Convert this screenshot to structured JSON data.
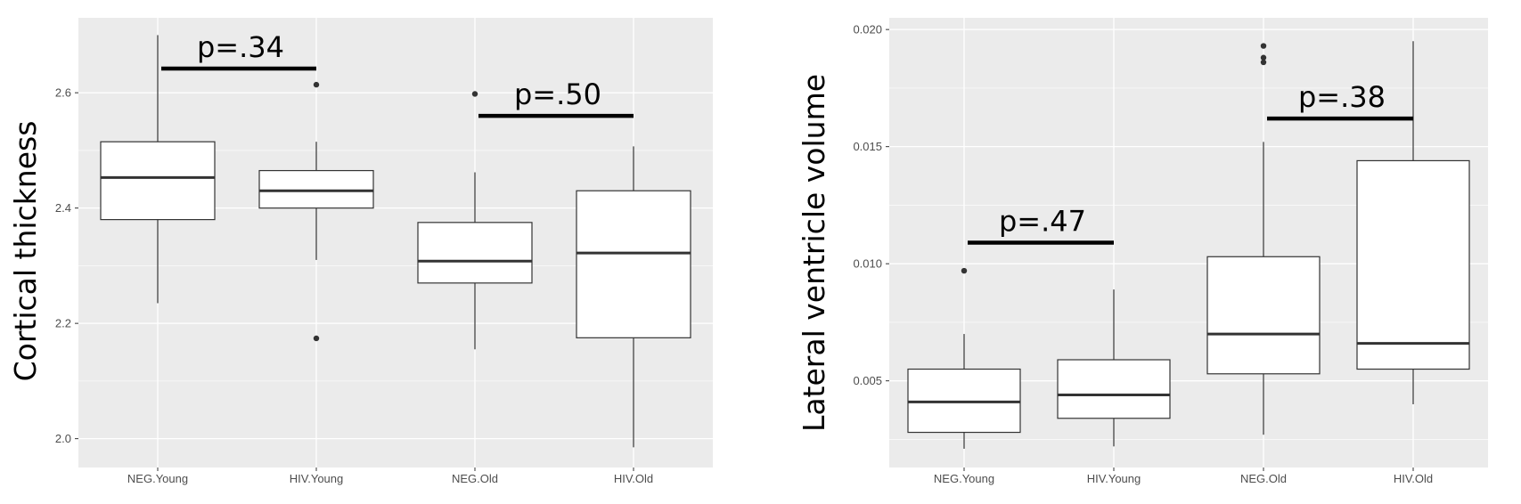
{
  "chart_data": [
    {
      "type": "box",
      "title": "",
      "xlabel": "",
      "ylabel": "Cortical thickness",
      "categories": [
        "NEG.Young",
        "HIV.Young",
        "NEG.Old",
        "HIV.Old"
      ],
      "yticks": [
        2.0,
        2.2,
        2.4,
        2.6
      ],
      "ylim": [
        1.95,
        2.73
      ],
      "grid": true,
      "boxes": [
        {
          "category": "NEG.Young",
          "whisker_low": 2.235,
          "q1": 2.38,
          "median": 2.453,
          "q3": 2.515,
          "whisker_high": 2.7,
          "outliers": []
        },
        {
          "category": "HIV.Young",
          "whisker_low": 2.31,
          "q1": 2.4,
          "median": 2.43,
          "q3": 2.465,
          "whisker_high": 2.515,
          "outliers": [
            2.614,
            2.174
          ]
        },
        {
          "category": "NEG.Old",
          "whisker_low": 2.155,
          "q1": 2.27,
          "median": 2.308,
          "q3": 2.375,
          "whisker_high": 2.462,
          "outliers": [
            2.598
          ]
        },
        {
          "category": "HIV.Old",
          "whisker_low": 1.985,
          "q1": 2.175,
          "median": 2.322,
          "q3": 2.43,
          "whisker_high": 2.507,
          "outliers": []
        }
      ],
      "annotations": [
        {
          "text": "p=.34",
          "from": "NEG.Young",
          "to": "HIV.Young",
          "y": 2.642
        },
        {
          "text": "p=.50",
          "from": "NEG.Old",
          "to": "HIV.Old",
          "y": 2.56
        }
      ]
    },
    {
      "type": "box",
      "title": "",
      "xlabel": "",
      "ylabel": "Lateral ventricle volume",
      "categories": [
        "NEG.Young",
        "HIV.Young",
        "NEG.Old",
        "HIV.Old"
      ],
      "yticks": [
        0.005,
        0.01,
        0.015,
        0.02
      ],
      "ytick_labels": [
        "0.005",
        "0.010",
        "0.015",
        "0.020"
      ],
      "ylim": [
        0.0013,
        0.0205
      ],
      "grid": true,
      "boxes": [
        {
          "category": "NEG.Young",
          "whisker_low": 0.0021,
          "q1": 0.0028,
          "median": 0.0041,
          "q3": 0.0055,
          "whisker_high": 0.007,
          "outliers": [
            0.0097
          ]
        },
        {
          "category": "HIV.Young",
          "whisker_low": 0.0022,
          "q1": 0.0034,
          "median": 0.0044,
          "q3": 0.0059,
          "whisker_high": 0.0089,
          "outliers": []
        },
        {
          "category": "NEG.Old",
          "whisker_low": 0.0027,
          "q1": 0.0053,
          "median": 0.007,
          "q3": 0.0103,
          "whisker_high": 0.0152,
          "outliers": [
            0.0186,
            0.0188,
            0.0193
          ]
        },
        {
          "category": "HIV.Old",
          "whisker_low": 0.004,
          "q1": 0.0055,
          "median": 0.0066,
          "q3": 0.0144,
          "whisker_high": 0.0195,
          "outliers": []
        }
      ],
      "annotations": [
        {
          "text": "p=.47",
          "from": "NEG.Young",
          "to": "HIV.Young",
          "y": 0.0109
        },
        {
          "text": "p=.38",
          "from": "NEG.Old",
          "to": "HIV.Old",
          "y": 0.0162
        }
      ]
    }
  ],
  "colors": {
    "panel_bg": "#ebebeb",
    "grid_major": "#ffffff",
    "box_fill": "#ffffff",
    "box_stroke": "#333333",
    "outlier": "#333333",
    "annotation": "#000000"
  }
}
